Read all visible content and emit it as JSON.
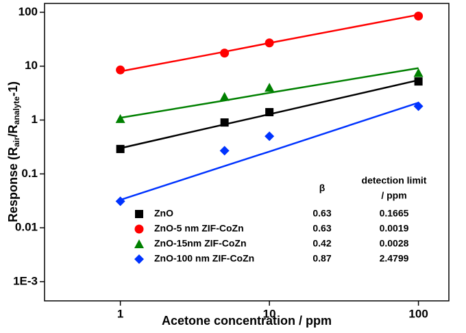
{
  "chart_data": {
    "type": "scatter",
    "xlabel": "Acetone concentration / ppm",
    "ylabel": {
      "main": "Response (R",
      "sub1": "air",
      "mid": "/R",
      "sub2": "analyte",
      "end": "-1)"
    },
    "x": [
      1,
      5,
      10,
      100
    ],
    "xscale": "log",
    "yscale": "log",
    "xlim": [
      0.31,
      160
    ],
    "ylim": [
      0.00044,
      146
    ],
    "xticks": [
      1,
      10,
      100
    ],
    "yticks": [
      {
        "value": 0.001,
        "label": "1E-3"
      },
      0.01,
      0.1,
      1,
      10,
      100
    ],
    "table_headers": {
      "beta": "β",
      "limit": [
        "detection limit",
        "/ ppm"
      ]
    },
    "series": [
      {
        "name": "ZnO",
        "color": "#000000",
        "marker": "square",
        "values": [
          0.29,
          0.9,
          1.4,
          5.2
        ],
        "fit_values": [
          0.3,
          0.83,
          1.28,
          5.5
        ],
        "beta": 0.63,
        "detection_limit": 0.1665
      },
      {
        "name": "ZnO-5 nm ZIF-CoZn",
        "color": "#ff0000",
        "marker": "circle",
        "values": [
          8.5,
          17.5,
          27,
          85
        ],
        "fit_values": [
          8,
          18.5,
          26.9,
          90
        ],
        "beta": 0.63,
        "detection_limit": 0.0019
      },
      {
        "name": "ZnO-15nm ZIF-CoZn",
        "color": "#008000",
        "marker": "triangle",
        "values": [
          1.05,
          2.7,
          4.0,
          7.5
        ],
        "fit_values": [
          1.1,
          2.3,
          3.2,
          9.2
        ],
        "beta": 0.42,
        "detection_limit": 0.0028
      },
      {
        "name": "ZnO-100 nm ZIF-CoZn",
        "color": "#0033ff",
        "marker": "diamond",
        "values": [
          0.031,
          0.27,
          0.5,
          1.8
        ],
        "fit_values": [
          0.033,
          0.14,
          0.26,
          2.1
        ],
        "beta": 0.87,
        "detection_limit": 2.4799
      }
    ]
  }
}
